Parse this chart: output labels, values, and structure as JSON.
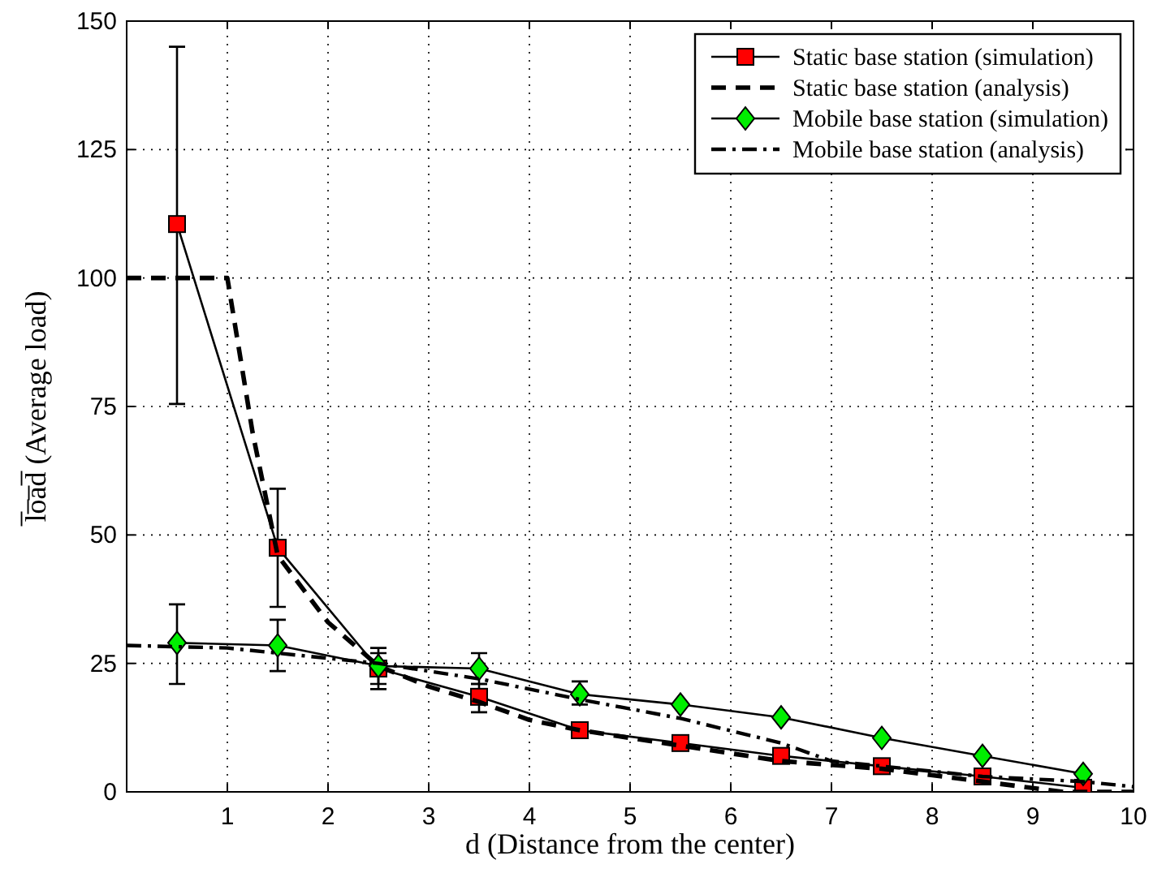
{
  "chart_data": {
    "type": "line",
    "xlabel": "d  (Distance from the center)",
    "ylabel": "l̅o̅a̅d̅  (Average load)",
    "xlim": [
      0,
      10
    ],
    "ylim": [
      0,
      150
    ],
    "xticks": [
      1,
      2,
      3,
      4,
      5,
      6,
      7,
      8,
      9,
      10
    ],
    "yticks": [
      0,
      25,
      50,
      75,
      100,
      125,
      150
    ],
    "grid": true,
    "legend": "top right",
    "series": [
      {
        "name": "Static base station (simulation)",
        "color": "#ff0000",
        "marker": "square",
        "line_style": "solid",
        "x": [
          0.5,
          1.5,
          2.5,
          3.5,
          4.5,
          5.5,
          6.5,
          7.5,
          8.5,
          9.5
        ],
        "values": [
          110.5,
          47.5,
          24,
          18.5,
          12,
          9.5,
          7,
          5,
          3,
          0.8
        ],
        "errors": [
          [
            75.5,
            145
          ],
          [
            36,
            59
          ],
          [
            20,
            27
          ],
          [
            15.5,
            21
          ],
          null,
          null,
          null,
          null,
          null,
          null
        ]
      },
      {
        "name": "Static base station (analysis)",
        "color": "#000000",
        "marker": "none",
        "line_style": "dashed",
        "x": [
          0,
          1,
          1.25,
          1.5,
          2,
          2.5,
          3,
          3.5,
          4,
          4.5,
          5.5,
          6.5,
          7.5,
          8.5,
          9.3,
          10
        ],
        "values": [
          100,
          100,
          70,
          46,
          33,
          24.5,
          20.5,
          17.5,
          14,
          12,
          9,
          6,
          4.5,
          2,
          0,
          0
        ]
      },
      {
        "name": "Mobile base station (simulation)",
        "color": "#00ee00",
        "marker": "diamond",
        "line_style": "solid",
        "x": [
          0.5,
          1.5,
          2.5,
          3.5,
          4.5,
          5.5,
          6.5,
          7.5,
          8.5,
          9.5
        ],
        "values": [
          29,
          28.5,
          24.5,
          24,
          19,
          17,
          14.5,
          10.5,
          7,
          3.5
        ],
        "errors": [
          [
            21,
            36.5
          ],
          [
            23.5,
            33.5
          ],
          [
            21,
            28
          ],
          [
            21,
            27
          ],
          [
            17,
            21.5
          ],
          null,
          null,
          null,
          null,
          null
        ]
      },
      {
        "name": "Mobile base station (analysis)",
        "color": "#000000",
        "marker": "none",
        "line_style": "dashdot",
        "x": [
          0,
          1,
          1.5,
          2.5,
          3.5,
          4.5,
          5.5,
          6.5,
          7,
          7.5,
          8.5,
          9.5,
          10
        ],
        "values": [
          28.5,
          28,
          27,
          25,
          22,
          18,
          14.3,
          9.5,
          6,
          5,
          3,
          2,
          1
        ]
      }
    ]
  }
}
